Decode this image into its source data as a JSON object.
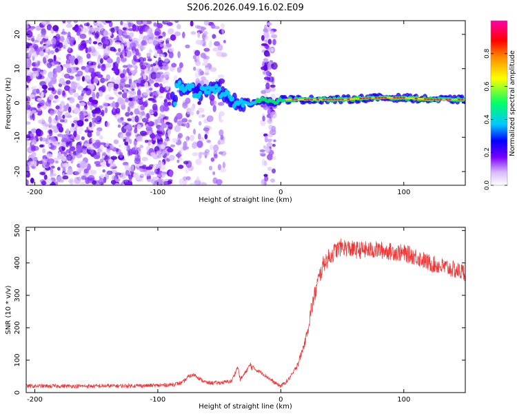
{
  "title": "S206.2026.049.16.02.E09",
  "chart_data": [
    {
      "type": "heatmap",
      "xlabel": "Height of straight line (km)",
      "ylabel": "Frequency (Hz)",
      "xlim": [
        -207,
        150
      ],
      "ylim": [
        -24,
        24
      ],
      "xticks": [
        -200,
        -100,
        0,
        100
      ],
      "yticks": [
        -20,
        -10,
        0,
        10,
        20
      ],
      "colorbar": {
        "label": "Normalized spectral amplitude",
        "range": [
          0,
          1
        ],
        "ticks": [
          0.0,
          0.2,
          0.4,
          0.6,
          0.8
        ],
        "tick_labels": [
          "0.0",
          "0.2",
          "0.4",
          "0.6",
          "0.8"
        ],
        "colors": [
          "#ffffff",
          "#d8b8ff",
          "#7a00ff",
          "#0000ff",
          "#00c8ff",
          "#00ff66",
          "#ffff00",
          "#ff8800",
          "#ff0000",
          "#ff00aa"
        ]
      },
      "ridge": [
        {
          "x": -85,
          "y": 5
        },
        {
          "x": -75,
          "y": 4
        },
        {
          "x": -65,
          "y": 3
        },
        {
          "x": -55,
          "y": 5
        },
        {
          "x": -45,
          "y": 2
        },
        {
          "x": -35,
          "y": 0
        },
        {
          "x": -25,
          "y": 0
        },
        {
          "x": -15,
          "y": 1
        },
        {
          "x": -5,
          "y": 0
        },
        {
          "x": 0,
          "y": 1
        },
        {
          "x": 25,
          "y": 1
        },
        {
          "x": 50,
          "y": 1
        },
        {
          "x": 75,
          "y": 1.5
        },
        {
          "x": 100,
          "y": 1.5
        },
        {
          "x": 125,
          "y": 1
        },
        {
          "x": 150,
          "y": 1
        }
      ]
    },
    {
      "type": "line",
      "xlabel": "Height of straight line (km)",
      "ylabel": "SNR (10 * v/v)",
      "xlim": [
        -207,
        150
      ],
      "ylim": [
        0,
        510
      ],
      "xticks": [
        -200,
        -100,
        0,
        100
      ],
      "yticks": [
        0,
        100,
        200,
        300,
        400,
        500
      ],
      "series": [
        {
          "name": "SNR",
          "color": "#f03535",
          "x": [
            -207,
            -150,
            -100,
            -90,
            -80,
            -75,
            -70,
            -65,
            -60,
            -50,
            -40,
            -35,
            -33,
            -30,
            -25,
            -20,
            -15,
            -10,
            -5,
            0,
            5,
            10,
            15,
            20,
            25,
            30,
            35,
            40,
            45,
            50,
            55,
            60,
            70,
            80,
            90,
            100,
            110,
            120,
            130,
            140,
            150
          ],
          "values": [
            20,
            20,
            22,
            24,
            30,
            50,
            55,
            40,
            30,
            30,
            35,
            80,
            40,
            55,
            85,
            70,
            60,
            45,
            30,
            20,
            35,
            60,
            100,
            160,
            260,
            340,
            400,
            420,
            440,
            450,
            445,
            440,
            440,
            440,
            435,
            430,
            420,
            400,
            390,
            380,
            370
          ]
        }
      ]
    }
  ]
}
